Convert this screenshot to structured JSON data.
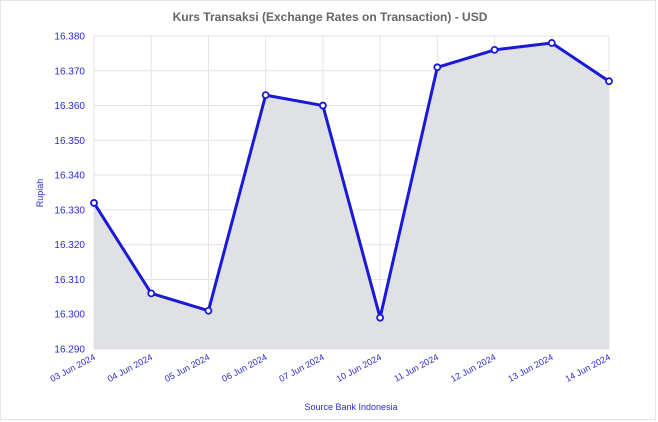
{
  "chart_data": {
    "type": "area",
    "title": "Kurs Transaksi (Exchange Rates on Transaction) - USD",
    "ylabel": "Rupiah",
    "xlabel": "",
    "source": "Source Bank Indonesia",
    "categories": [
      "03 Jun 2024",
      "04 Jun 2024",
      "05 Jun 2024",
      "06 Jun 2024",
      "07 Jun 2024",
      "10 Jun 2024",
      "11 Jun 2024",
      "12 Jun 2024",
      "13 Jun 2024",
      "14 Jun 2024"
    ],
    "series": [
      {
        "values": [
          16332,
          16306,
          16301,
          16363,
          16360,
          16299,
          16371,
          16376,
          16378,
          16367
        ]
      }
    ],
    "ylim": [
      16290,
      16380
    ],
    "yticks": [
      16380,
      16370,
      16360,
      16350,
      16340,
      16330,
      16320,
      16310,
      16300,
      16290
    ],
    "ytick_labels": [
      "16.380",
      "16.370",
      "16.360",
      "16.350",
      "16.340",
      "16.330",
      "16.320",
      "16.310",
      "16.300",
      "16.290"
    ],
    "grid": true,
    "colors": {
      "line": "#1a1ad6",
      "fill": "#dfe1e5",
      "text": "#2a2ad0",
      "title": "#666666"
    }
  }
}
